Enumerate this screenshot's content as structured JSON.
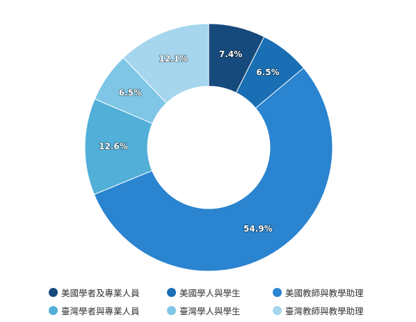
{
  "chart_data": {
    "type": "pie",
    "donut": true,
    "start_angle_deg": 0,
    "direction": "clockwise",
    "categories": [
      "美國學者及專業人員",
      "美國學人與學生",
      "美國教師與教學助理",
      "臺灣學者與專業人員",
      "臺灣學人與學生",
      "臺灣教師與教學助理"
    ],
    "values": [
      7.4,
      6.5,
      54.9,
      12.6,
      6.5,
      12.1
    ],
    "labels": [
      "7.4%",
      "6.5%",
      "54.9%",
      "12.6%",
      "6.5%",
      "12.1%"
    ],
    "colors": [
      "#174a7c",
      "#1a6eb4",
      "#2a84d0",
      "#52afd8",
      "#7fc6e6",
      "#a5d6ee"
    ],
    "legend_position": "bottom"
  }
}
